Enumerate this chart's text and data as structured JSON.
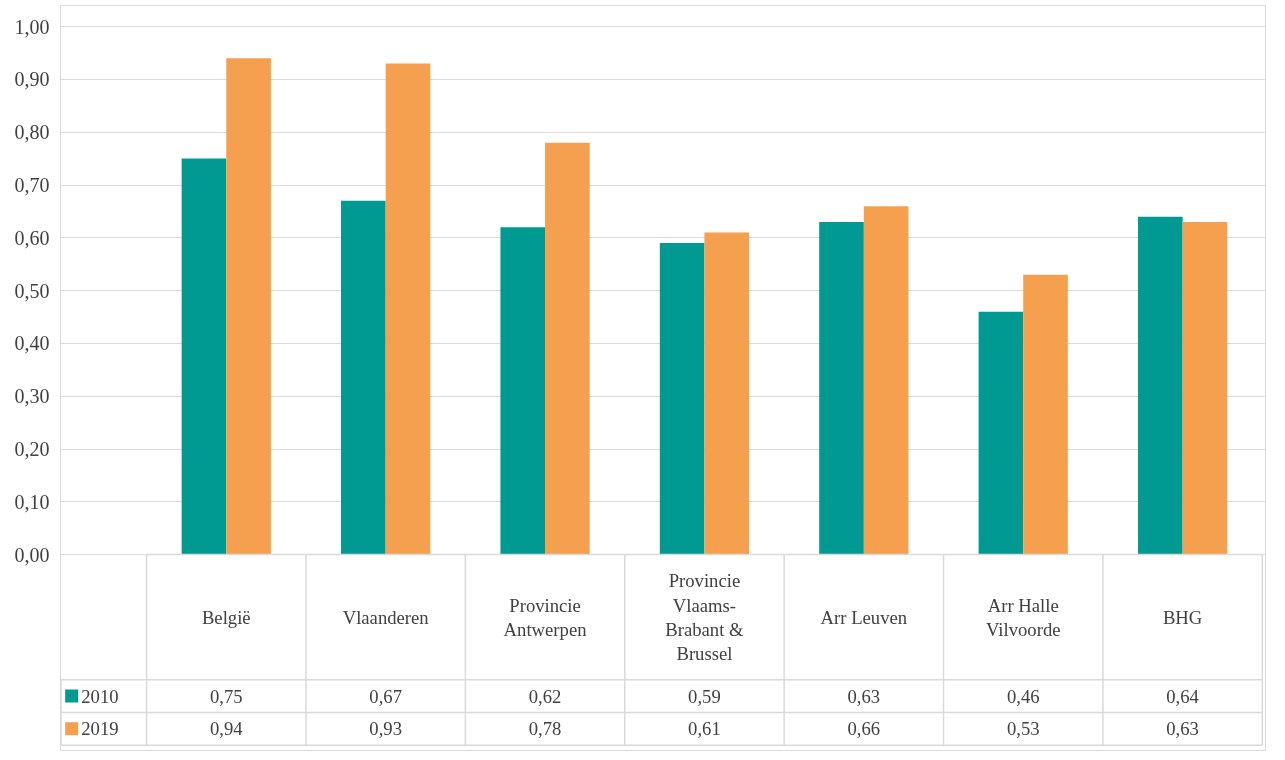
{
  "chart_data": {
    "type": "bar",
    "categories": [
      "België",
      "Vlaanderen",
      "Provincie Antwerpen",
      "Provincie Vlaams-Brabant & Brussel",
      "Arr Leuven",
      "Arr Halle Vilvoorde",
      "BHG"
    ],
    "series": [
      {
        "name": "2010",
        "color": "#009a93",
        "values": [
          0.75,
          0.67,
          0.62,
          0.59,
          0.63,
          0.46,
          0.64
        ],
        "value_labels": [
          "0,75",
          "0,67",
          "0,62",
          "0,59",
          "0,63",
          "0,46",
          "0,64"
        ]
      },
      {
        "name": "2019",
        "color": "#f5a04e",
        "values": [
          0.94,
          0.93,
          0.78,
          0.61,
          0.66,
          0.53,
          0.63
        ],
        "value_labels": [
          "0,94",
          "0,93",
          "0,78",
          "0,61",
          "0,66",
          "0,53",
          "0,63"
        ]
      }
    ],
    "ylim": [
      0,
      1
    ],
    "yticks": [
      {
        "value": 0,
        "label": "0,00"
      },
      {
        "value": 0.1,
        "label": "0,10"
      },
      {
        "value": 0.2,
        "label": "0,20"
      },
      {
        "value": 0.3,
        "label": "0,30"
      },
      {
        "value": 0.4,
        "label": "0,40"
      },
      {
        "value": 0.5,
        "label": "0,50"
      },
      {
        "value": 0.6,
        "label": "0,60"
      },
      {
        "value": 0.7,
        "label": "0,70"
      },
      {
        "value": 0.8,
        "label": "0,80"
      },
      {
        "value": 0.9,
        "label": "0,90"
      },
      {
        "value": 1,
        "label": "1,00"
      }
    ],
    "grid": "y",
    "legend": "bottom left"
  }
}
